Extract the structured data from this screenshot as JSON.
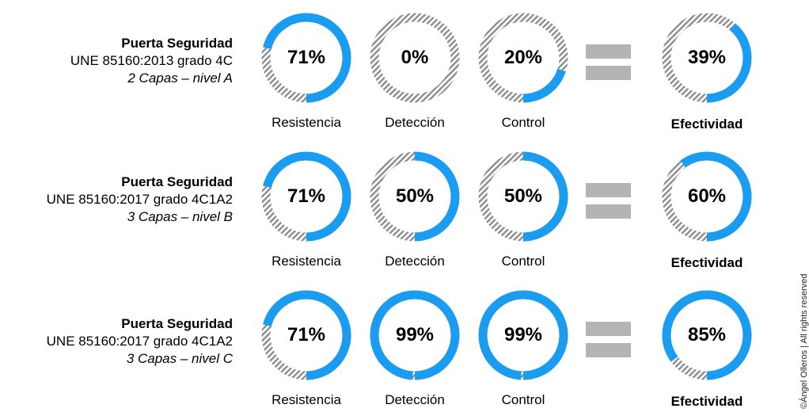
{
  "colors": {
    "accent": "#1a9cf0",
    "hatch": "#8c8c8c",
    "equals": "#b4b4b4"
  },
  "rows": [
    {
      "title": "Puerta Seguridad",
      "standard": "UNE 85160:2013 grado 4C",
      "layers": "2 Capas – nivel A"
    },
    {
      "title": "Puerta Seguridad",
      "standard": "UNE 85160:2017 grado 4C1A2",
      "layers": "3 Capas – nivel B"
    },
    {
      "title": "Puerta Seguridad",
      "standard": "UNE 85160:2017 grado 4C1A2",
      "layers": "3 Capas – nivel C"
    }
  ],
  "chart_data": {
    "type": "donut",
    "categories": [
      "Resistencia",
      "Detección",
      "Control",
      "Efectividad"
    ],
    "series": [
      {
        "name": "2 Capas – nivel A",
        "values": [
          71,
          0,
          20,
          39
        ],
        "labels": [
          "71%",
          "0%",
          "20%",
          "39%"
        ]
      },
      {
        "name": "3 Capas – nivel B",
        "values": [
          71,
          50,
          50,
          60
        ],
        "labels": [
          "71%",
          "50%",
          "50%",
          "60%"
        ]
      },
      {
        "name": "3 Capas – nivel C",
        "values": [
          71,
          99,
          99,
          85
        ],
        "labels": [
          "71%",
          "99%",
          "99%",
          "85%"
        ]
      }
    ],
    "ylim": [
      0,
      100
    ]
  },
  "copyright": "©Ángel Olleros | All rights reserved"
}
